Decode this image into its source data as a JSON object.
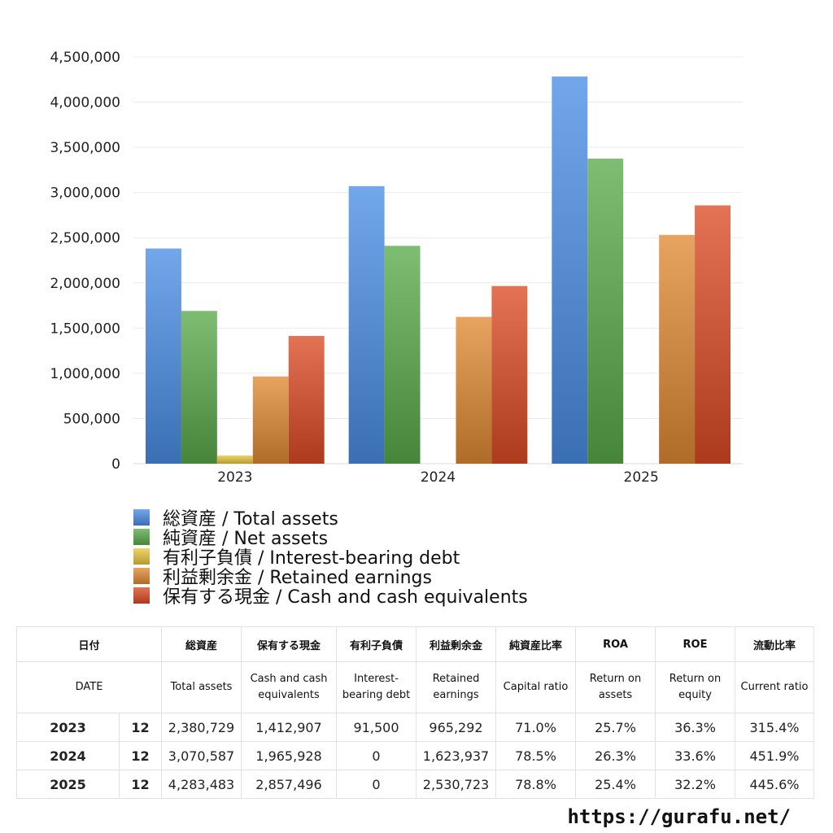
{
  "chart_data": {
    "type": "bar",
    "categories": [
      "2023",
      "2024",
      "2025"
    ],
    "series": [
      {
        "name": "総資産 / Total assets",
        "values": [
          2380729,
          3070587,
          4283483
        ],
        "color": "#4a8ee6"
      },
      {
        "name": "純資産 / Net assets",
        "values": [
          1690000,
          2410000,
          3375000
        ],
        "color": "#5aaa4a"
      },
      {
        "name": "有利子負債 / Interest-bearing debt",
        "values": [
          91500,
          0,
          0
        ],
        "color": "#e8c840"
      },
      {
        "name": "利益剰余金 / Retained earnings",
        "values": [
          965292,
          1623937,
          2530723
        ],
        "color": "#e08a35"
      },
      {
        "name": "保有する現金 /  Cash and cash equivalents",
        "values": [
          1412907,
          1965928,
          2857496
        ],
        "color": "#dd4a25"
      }
    ],
    "ylim": [
      0,
      4500000
    ],
    "yticks": [
      "4,500,000",
      "4,000,000",
      "3,500,000",
      "3,000,000",
      "2,500,000",
      "2,000,000",
      "1,500,000",
      "1,000,000",
      "500,000",
      "0"
    ],
    "grid": true,
    "legend_position": "bottom-left"
  },
  "table": {
    "header_ja": [
      "日付",
      "総資産",
      "保有する現金",
      "有利子負債",
      "利益剰余金",
      "純資産比率",
      "ROA",
      "ROE",
      "流動比率"
    ],
    "header_en": [
      "DATE",
      "Total assets",
      "Cash and cash equivalents",
      "Interest-bearing debt",
      "Retained earnings",
      "Capital ratio",
      "Return on assets",
      "Return on equity",
      "Current ratio"
    ],
    "rows": [
      {
        "year": "2023",
        "month": "12",
        "cells": [
          "2,380,729",
          "1,412,907",
          "91,500",
          "965,292",
          "71.0%",
          "25.7%",
          "36.3%",
          "315.4%"
        ]
      },
      {
        "year": "2024",
        "month": "12",
        "cells": [
          "3,070,587",
          "1,965,928",
          "0",
          "1,623,937",
          "78.5%",
          "26.3%",
          "33.6%",
          "451.9%"
        ]
      },
      {
        "year": "2025",
        "month": "12",
        "cells": [
          "4,283,483",
          "2,857,496",
          "0",
          "2,530,723",
          "78.8%",
          "25.4%",
          "32.2%",
          "445.6%"
        ]
      }
    ]
  },
  "footer": {
    "url": "https://gurafu.net/"
  }
}
